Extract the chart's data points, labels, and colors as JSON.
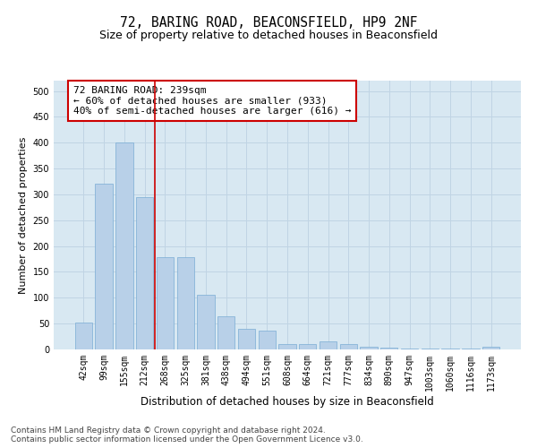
{
  "title": "72, BARING ROAD, BEACONSFIELD, HP9 2NF",
  "subtitle": "Size of property relative to detached houses in Beaconsfield",
  "xlabel": "Distribution of detached houses by size in Beaconsfield",
  "ylabel": "Number of detached properties",
  "categories": [
    "42sqm",
    "99sqm",
    "155sqm",
    "212sqm",
    "268sqm",
    "325sqm",
    "381sqm",
    "438sqm",
    "494sqm",
    "551sqm",
    "608sqm",
    "664sqm",
    "721sqm",
    "777sqm",
    "834sqm",
    "890sqm",
    "947sqm",
    "1003sqm",
    "1060sqm",
    "1116sqm",
    "1173sqm"
  ],
  "values": [
    52,
    320,
    400,
    295,
    178,
    178,
    106,
    65,
    40,
    36,
    10,
    10,
    15,
    10,
    6,
    3,
    2,
    1,
    1,
    1,
    5
  ],
  "bar_color": "#b8d0e8",
  "bar_edgecolor": "#7aadd4",
  "bar_width": 0.85,
  "vline_x": 3.5,
  "vline_color": "#cc0000",
  "annotation_text": "72 BARING ROAD: 239sqm\n← 60% of detached houses are smaller (933)\n40% of semi-detached houses are larger (616) →",
  "annotation_box_facecolor": "#ffffff",
  "annotation_box_edgecolor": "#cc0000",
  "ylim": [
    0,
    520
  ],
  "yticks": [
    0,
    50,
    100,
    150,
    200,
    250,
    300,
    350,
    400,
    450,
    500
  ],
  "grid_color": "#c0d4e4",
  "background_color": "#d8e8f2",
  "footer_text": "Contains HM Land Registry data © Crown copyright and database right 2024.\nContains public sector information licensed under the Open Government Licence v3.0.",
  "title_fontsize": 10.5,
  "subtitle_fontsize": 9,
  "xlabel_fontsize": 8.5,
  "ylabel_fontsize": 8,
  "tick_fontsize": 7,
  "annotation_fontsize": 8,
  "footer_fontsize": 6.5
}
